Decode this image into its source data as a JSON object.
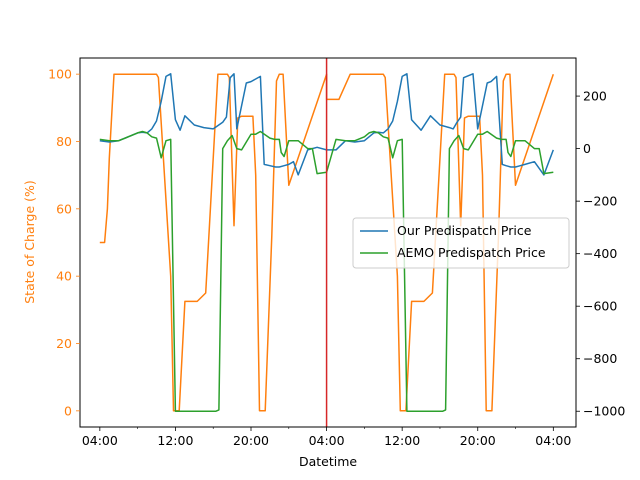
{
  "chart_data": {
    "type": "line",
    "xlabel": "Datetime",
    "ylabel_left": "State of Charge (%)",
    "ylabel_right": "",
    "x_units": "hours (from 00:00 of day 1)",
    "x_ticks": [
      {
        "x": 4,
        "label": "04:00"
      },
      {
        "x": 12,
        "label": "12:00"
      },
      {
        "x": 20,
        "label": "20:00"
      },
      {
        "x": 28,
        "label": "04:00"
      },
      {
        "x": 36,
        "label": "12:00"
      },
      {
        "x": 44,
        "label": "20:00"
      },
      {
        "x": 52,
        "label": "04:00"
      }
    ],
    "x_minor_ticks": [
      8,
      16,
      24,
      32,
      40,
      48
    ],
    "xlim": [
      1.9,
      54.4
    ],
    "ylim_left": [
      -4.8,
      104.8
    ],
    "ylim_right": [
      -1060,
      345
    ],
    "y_ticks_left": [
      0,
      20,
      40,
      60,
      80,
      100
    ],
    "y_ticks_right": [
      -1000,
      -800,
      -600,
      -400,
      -200,
      0,
      200
    ],
    "vline": {
      "x": 28,
      "color": "#d62728"
    },
    "left_axis_color": "#ff7f0e",
    "legend": {
      "placement": "center-right",
      "entries": [
        "Our Predispatch Price",
        "AEMO Predispatch Price"
      ]
    },
    "series": [
      {
        "name": "State of Charge",
        "axis": "left",
        "color": "#ff7f0e",
        "x": [
          4,
          4.5,
          4.8,
          4.9,
          5.0,
          5.5,
          6.5,
          10.0,
          10.2,
          11.5,
          11.8,
          12.4,
          13.0,
          14.0,
          14.3,
          15.2,
          16.5,
          17.5,
          17.7,
          18.2,
          18.6,
          19.0,
          19.5,
          20.2,
          20.5,
          20.9,
          21.5,
          22.2,
          22.7,
          23.0,
          23.4,
          24.0,
          28.0,
          28.0,
          29.0,
          29.3,
          30.5,
          34.0,
          34.2,
          35.5,
          35.8,
          36.4,
          37.0,
          38.0,
          38.3,
          39.2,
          40.5,
          41.5,
          41.7,
          42.2,
          42.6,
          43.0,
          43.5,
          44.2,
          44.5,
          44.9,
          45.5,
          46.2,
          46.7,
          47.0,
          47.4,
          48.0,
          52.0
        ],
        "values": [
          50,
          50,
          60,
          67,
          75,
          100,
          100,
          100,
          99,
          40,
          0,
          0,
          32.5,
          32.5,
          32.5,
          35,
          100,
          100,
          99,
          55,
          87,
          87.5,
          87.5,
          87.5,
          70,
          0,
          0,
          52,
          98,
          100,
          100,
          67,
          100,
          92.5,
          92.5,
          92.5,
          100,
          100,
          99,
          40,
          0,
          0,
          32.5,
          32.5,
          32.5,
          35,
          100,
          100,
          99,
          55,
          87,
          87.5,
          87.5,
          87.5,
          70,
          0,
          0,
          52,
          98,
          100,
          100,
          67,
          100
        ]
      },
      {
        "name": "Our Predispatch Price",
        "axis": "right",
        "color": "#1f77b4",
        "x": [
          4,
          5,
          6,
          7,
          8,
          8.5,
          9,
          9.5,
          10,
          10.5,
          11,
          11.5,
          12,
          12.5,
          13,
          14,
          15,
          16,
          17,
          17.4,
          17.8,
          18.2,
          18.5,
          19.5,
          20,
          21,
          21.4,
          22,
          22.6,
          23,
          23.5,
          24,
          24.5,
          25,
          26,
          27,
          28,
          29,
          30,
          31,
          32,
          32.5,
          33,
          33.5,
          34,
          34.5,
          35,
          35.5,
          36,
          36.5,
          37,
          38,
          39,
          40,
          41,
          41.4,
          41.8,
          42.2,
          42.5,
          43.5,
          44,
          45,
          45.4,
          46,
          46.6,
          47,
          47.5,
          48,
          48.5,
          49,
          50,
          51,
          52
        ],
        "values": [
          30,
          25,
          30,
          45,
          60,
          62,
          60,
          75,
          105,
          180,
          275,
          285,
          110,
          70,
          125,
          90,
          80,
          75,
          100,
          120,
          270,
          285,
          75,
          250,
          255,
          275,
          -60,
          -65,
          -70,
          -70,
          -65,
          -60,
          -50,
          -100,
          -5,
          5,
          -5,
          -5,
          30,
          25,
          30,
          45,
          60,
          62,
          60,
          75,
          105,
          180,
          275,
          285,
          110,
          70,
          125,
          90,
          80,
          75,
          100,
          120,
          270,
          285,
          75,
          250,
          255,
          275,
          -60,
          -65,
          -70,
          -70,
          -65,
          -60,
          -50,
          -100,
          -5
        ]
      },
      {
        "name": "AEMO Predispatch Price",
        "axis": "right",
        "color": "#2ca02c",
        "x": [
          4,
          5,
          6,
          7,
          8,
          8.5,
          9,
          9.5,
          10,
          10.5,
          11,
          11.5,
          12,
          12.5,
          13,
          14,
          15,
          16,
          16.3,
          16.6,
          17,
          17.5,
          18,
          18.5,
          19,
          20,
          20.5,
          21,
          22,
          22.5,
          23,
          23.2,
          23.5,
          24,
          25,
          26,
          26.5,
          27,
          28,
          29,
          30,
          31,
          32,
          32.5,
          33,
          33.5,
          34,
          34.5,
          35,
          35.5,
          36,
          36.5,
          37,
          38,
          39,
          40,
          40.3,
          40.6,
          41,
          41.5,
          42,
          42.5,
          43,
          44,
          44.5,
          45,
          46,
          46.5,
          47,
          47.2,
          47.5,
          48,
          49,
          50,
          50.5,
          51,
          52
        ],
        "values": [
          35,
          30,
          30,
          45,
          60,
          65,
          60,
          45,
          40,
          -35,
          30,
          35,
          -1000,
          -1000,
          -1000,
          -1000,
          -1000,
          -1000,
          -1000,
          -995,
          0,
          30,
          50,
          0,
          -5,
          55,
          55,
          65,
          40,
          35,
          35,
          -15,
          -30,
          30,
          30,
          0,
          0,
          -95,
          -90,
          35,
          30,
          30,
          45,
          60,
          65,
          60,
          45,
          40,
          -35,
          30,
          35,
          -1000,
          -1000,
          -1000,
          -1000,
          -1000,
          -1000,
          -995,
          0,
          30,
          50,
          0,
          -5,
          55,
          55,
          65,
          40,
          35,
          35,
          -15,
          -30,
          30,
          30,
          0,
          0,
          -95,
          -90
        ]
      }
    ]
  }
}
